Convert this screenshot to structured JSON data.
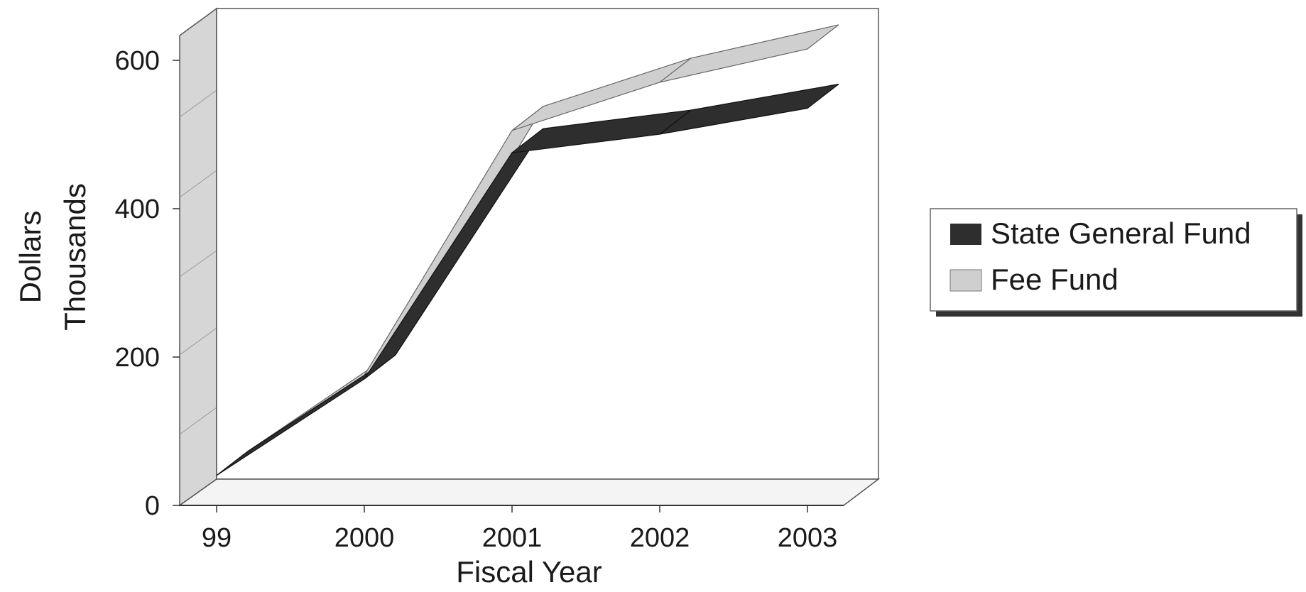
{
  "chart_data": {
    "type": "area",
    "style": "3d-ribbon",
    "title": "",
    "xlabel": "Fiscal Year",
    "ylabel": [
      "Dollars",
      "Thousands"
    ],
    "categories": [
      "99",
      "2000",
      "2001",
      "2002",
      "2003"
    ],
    "ylim": [
      0,
      600
    ],
    "yticks": [
      "0",
      "200",
      "400",
      "600"
    ],
    "grid": false,
    "legend_position": "right",
    "series": [
      {
        "name": "State General Fund",
        "values": [
          5,
          135,
          440,
          465,
          500
        ],
        "color": "#2e2e2e"
      },
      {
        "name": "Fee Fund",
        "values": [
          5,
          140,
          470,
          535,
          580
        ],
        "color": "#cfcfcf"
      }
    ]
  }
}
